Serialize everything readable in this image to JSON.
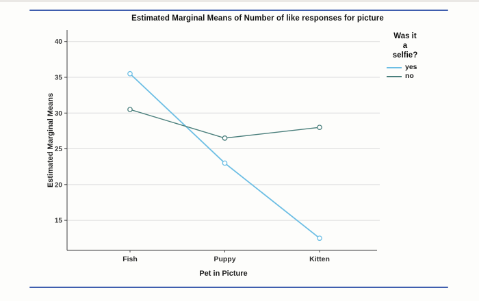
{
  "page": {
    "divider_color": "#3f5eae",
    "background": "#fdfdfb"
  },
  "chart_data": {
    "type": "line",
    "title": "Estimated Marginal Means of Number of like responses for picture",
    "xlabel": "Pet in Picture",
    "ylabel": "Estimated Marginal Means",
    "categories": [
      "Fish",
      "Puppy",
      "Kitten"
    ],
    "series": [
      {
        "name": "yes",
        "color": "#6cbee4",
        "values": [
          35.5,
          23,
          12.5
        ]
      },
      {
        "name": "no",
        "color": "#497e7b",
        "values": [
          30.5,
          26.5,
          28
        ]
      }
    ],
    "y_ticks": [
      40,
      35,
      30,
      25,
      20,
      15
    ],
    "ylim": [
      10.8,
      41.6
    ],
    "grid": "horizontal-only",
    "marker": "open-circle",
    "legend": {
      "title": "Was it a selfie?",
      "title_lines": [
        "Was it",
        "a",
        "selfie?"
      ],
      "position": "right"
    }
  }
}
